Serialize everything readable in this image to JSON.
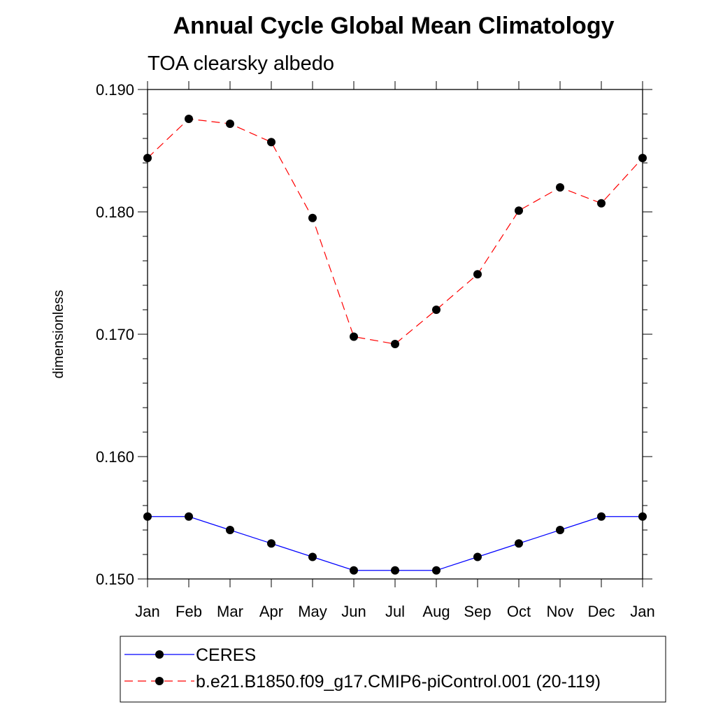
{
  "chart_data": {
    "type": "line",
    "title": "Annual Cycle Global Mean Climatology",
    "subtitle": "TOA clearsky albedo",
    "xlabel": "",
    "ylabel": "dimensionless",
    "categories": [
      "Jan",
      "Feb",
      "Mar",
      "Apr",
      "May",
      "Jun",
      "Jul",
      "Aug",
      "Sep",
      "Oct",
      "Nov",
      "Dec",
      "Jan"
    ],
    "ylim": [
      0.15,
      0.19
    ],
    "yticks": [
      "0.150",
      "0.160",
      "0.170",
      "0.180",
      "0.190"
    ],
    "legend_position": "bottom",
    "series": [
      {
        "name": "CERES",
        "color": "#0000ff",
        "dash": "solid",
        "values": [
          0.1551,
          0.1551,
          0.154,
          0.1529,
          0.1518,
          0.1507,
          0.1507,
          0.1507,
          0.1518,
          0.1529,
          0.154,
          0.1551,
          0.1551
        ]
      },
      {
        "name": "b.e21.B1850.f09_g17.CMIP6-piControl.001 (20-119)",
        "color": "#ff0000",
        "dash": "dashed",
        "values": [
          0.1844,
          0.1876,
          0.1872,
          0.1857,
          0.1795,
          0.1698,
          0.1692,
          0.172,
          0.1749,
          0.1801,
          0.182,
          0.1807,
          0.1844
        ]
      }
    ]
  }
}
